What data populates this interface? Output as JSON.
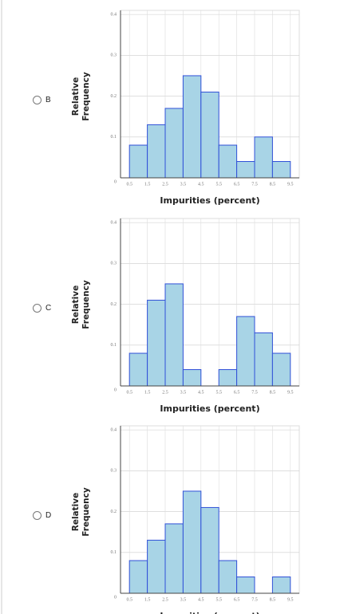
{
  "options": [
    "B",
    "C",
    "D"
  ],
  "chart_data": [
    {
      "type": "histogram",
      "x_label": "Impurities (percent)",
      "y_label": "Relative Frequency",
      "bins": [
        0.5,
        1.5,
        2.5,
        3.5,
        4.5,
        5.5,
        6.5,
        7.5,
        8.5,
        9.5
      ],
      "values": [
        0.08,
        0.13,
        0.17,
        0.25,
        0.21,
        0.08,
        0.04,
        0.1,
        0.04
      ],
      "xlim": [
        0,
        10
      ],
      "xticks": [
        0.5,
        1.5,
        2.5,
        3.5,
        4.5,
        5.5,
        6.5,
        7.5,
        8.5,
        9.5
      ],
      "ylim": [
        0,
        0.41
      ],
      "yticks": [
        0,
        0.1,
        0.2,
        0.3,
        0.4
      ],
      "grid": true,
      "color": "#a8d4e6"
    },
    {
      "type": "histogram",
      "x_label": "Impurities (percent)",
      "y_label": "Relative Frequency",
      "bins": [
        0.5,
        1.5,
        2.5,
        3.5,
        4.5,
        5.5,
        6.5,
        7.5,
        8.5,
        9.5
      ],
      "values": [
        0.08,
        0.21,
        0.25,
        0.04,
        0,
        0.04,
        0.17,
        0.13,
        0.08
      ],
      "xlim": [
        0,
        10
      ],
      "xticks": [
        0.5,
        1.5,
        2.5,
        3.5,
        4.5,
        5.5,
        6.5,
        7.5,
        8.5,
        9.5
      ],
      "ylim": [
        0,
        0.41
      ],
      "yticks": [
        0,
        0.1,
        0.2,
        0.3,
        0.4
      ],
      "grid": true,
      "color": "#a8d4e6"
    },
    {
      "type": "histogram",
      "x_label": "Impurities (percent)",
      "y_label": "Relative Frequency",
      "bins": [
        0.5,
        1.5,
        2.5,
        3.5,
        4.5,
        5.5,
        6.5,
        7.5,
        8.5,
        9.5
      ],
      "values": [
        0.08,
        0.13,
        0.17,
        0.25,
        0.21,
        0.08,
        0.04,
        0,
        0.04
      ],
      "xlim": [
        0,
        10
      ],
      "xticks": [
        0.5,
        1.5,
        2.5,
        3.5,
        4.5,
        5.5,
        6.5,
        7.5,
        8.5,
        9.5
      ],
      "ylim": [
        0,
        0.41
      ],
      "yticks": [
        0,
        0.1,
        0.2,
        0.3,
        0.4
      ],
      "grid": true,
      "color": "#a8d4e6"
    }
  ]
}
